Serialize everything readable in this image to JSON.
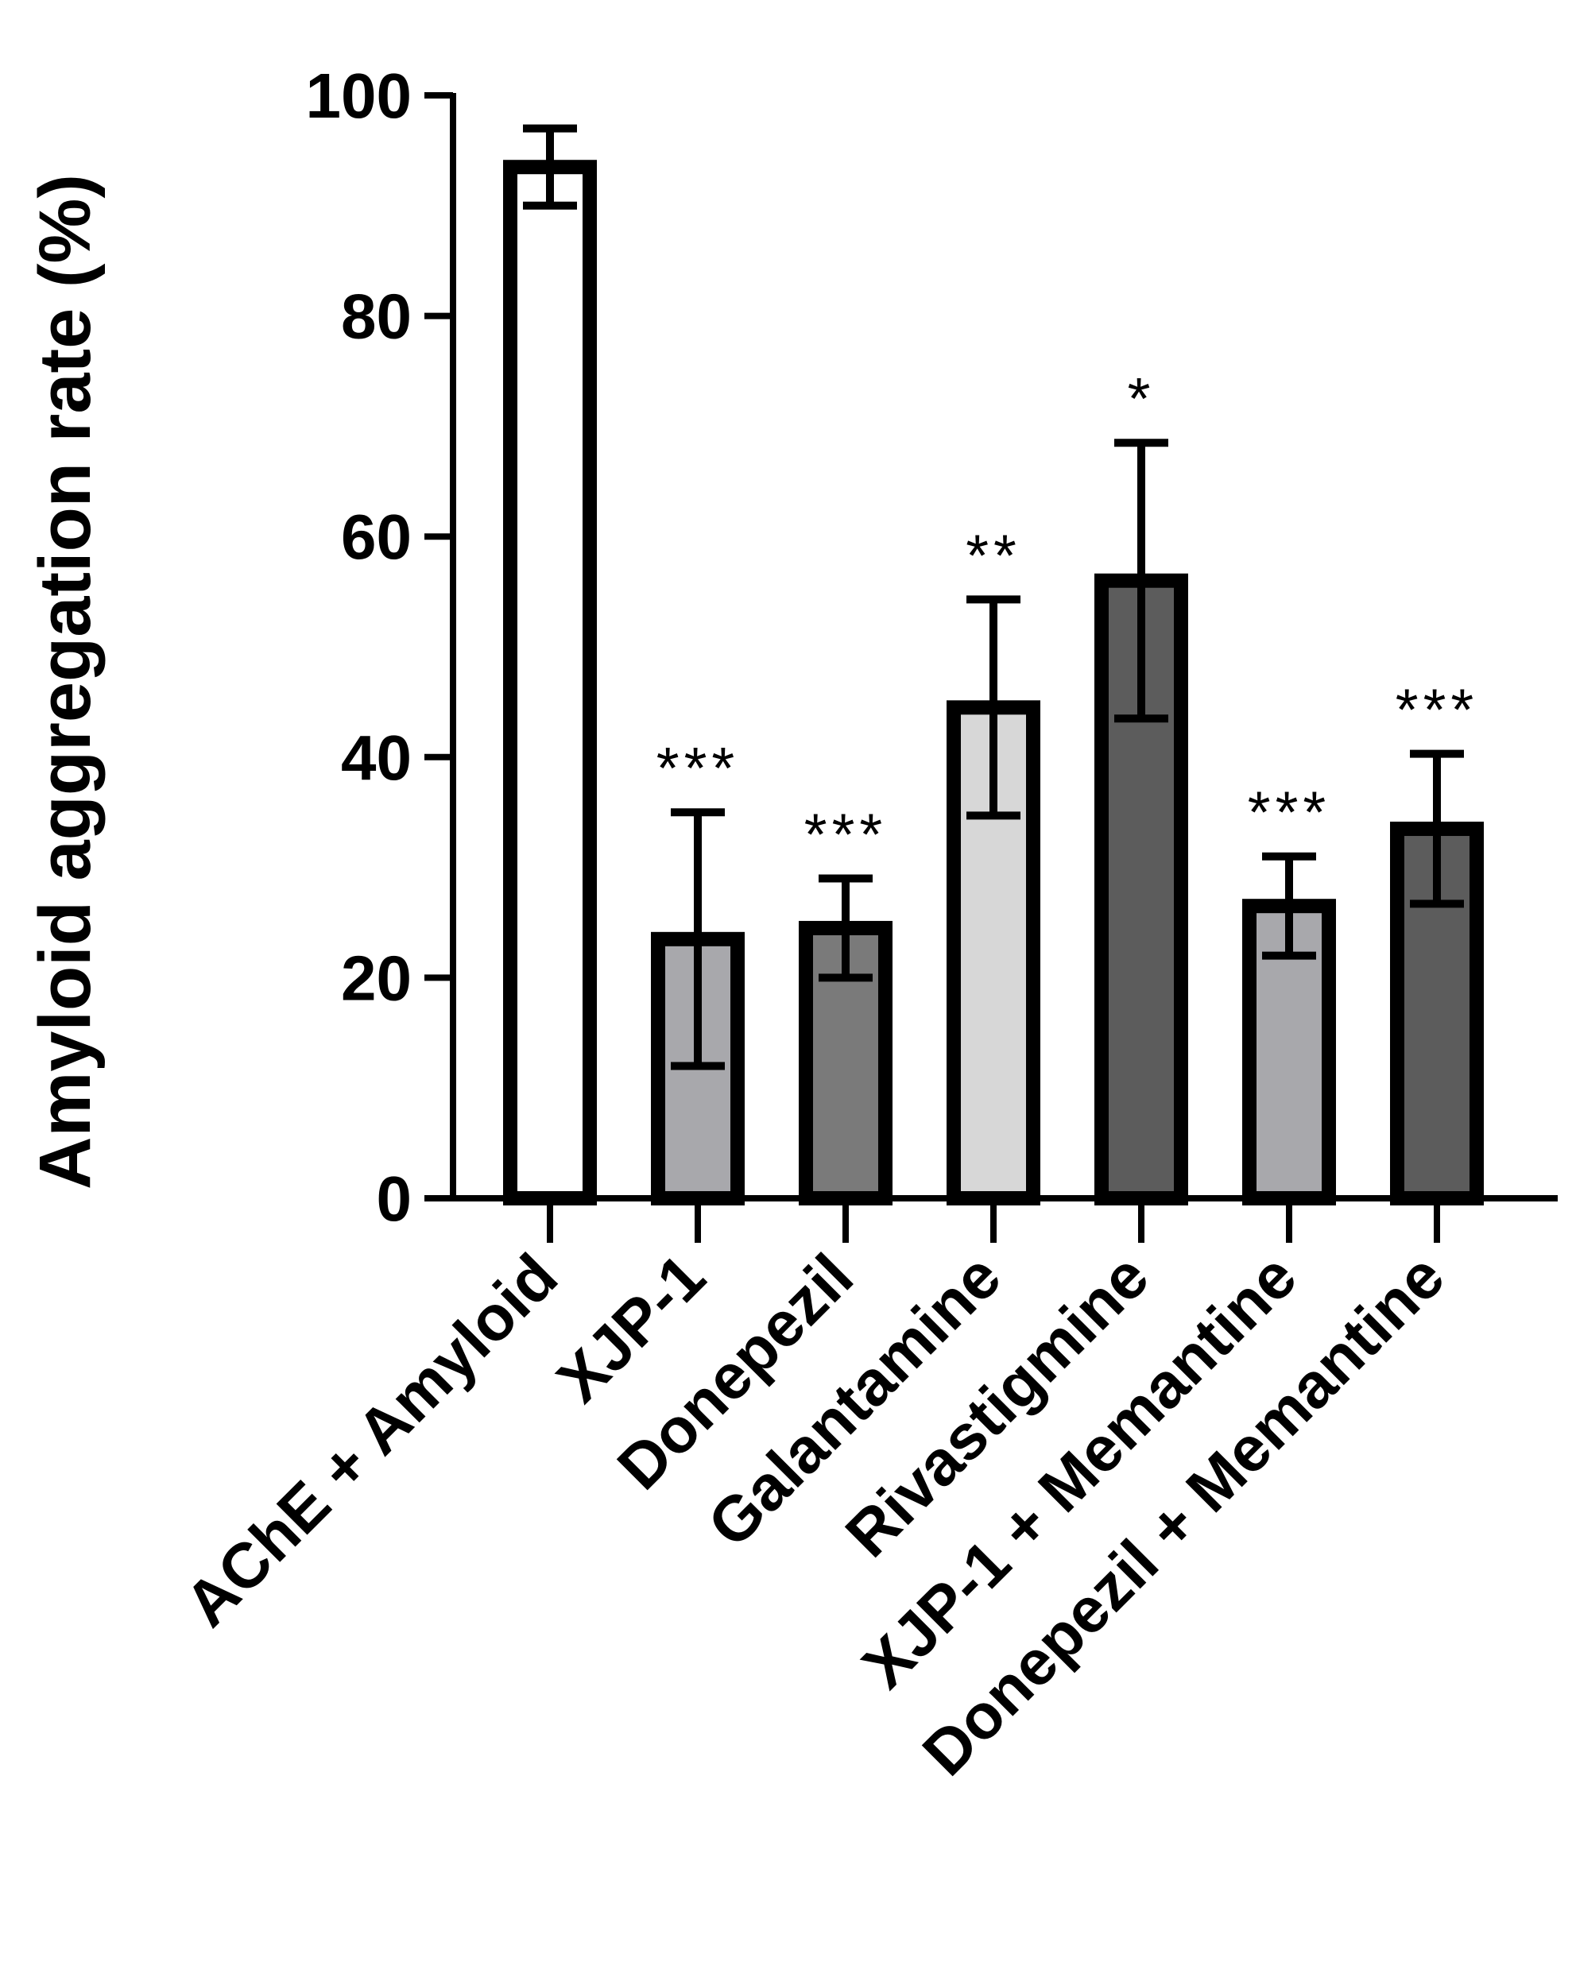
{
  "chart_data": {
    "type": "bar",
    "title": "",
    "xlabel": "",
    "ylabel": "Amyloid aggregation rate (%)",
    "ylim": [
      0,
      100
    ],
    "yticks": [
      "0",
      "20",
      "40",
      "60",
      "80",
      "100"
    ],
    "grid": false,
    "categories": [
      "AChE + Amyloid",
      "XJP-1",
      "Donepezil",
      "Galantamine",
      "Rivastigmine",
      "XJP-1 + Memantine",
      "Donepezil + Memantine"
    ],
    "values": [
      93.5,
      23.5,
      24.5,
      44.5,
      56,
      26.5,
      33.5
    ],
    "errors": [
      3.5,
      11.5,
      4.5,
      9.8,
      12.5,
      4.5,
      6.8
    ],
    "significance": [
      "",
      "***",
      "***",
      "**",
      "*",
      "***",
      "***"
    ],
    "colors": [
      "#ffffff",
      "#a8a8ac",
      "#7a7a7a",
      "#d7d7d7",
      "#5c5c5c",
      "#a8a8ac",
      "#5c5c5c"
    ]
  }
}
